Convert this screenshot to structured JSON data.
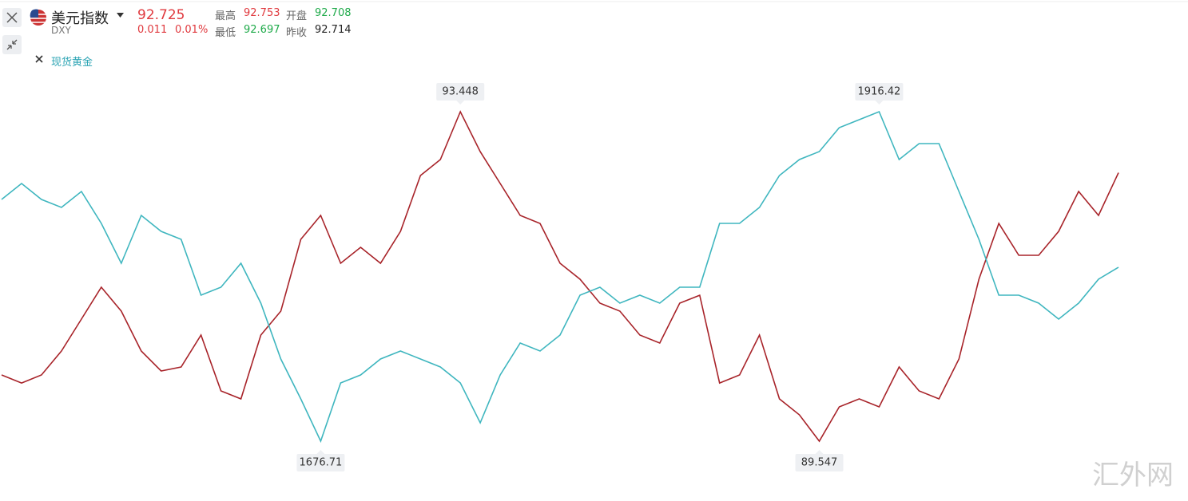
{
  "header": {
    "name": "美元指数",
    "code": "DXY",
    "price": 92.725,
    "change": 0.011,
    "change_pct": "0.01%",
    "stats": [
      {
        "label": "最高",
        "value": 92.753
      },
      {
        "label": "开盘",
        "value": 92.708
      },
      {
        "label": "最低",
        "value": 92.697
      },
      {
        "label": "昨收",
        "value": 92.714
      }
    ],
    "overlay": "现货黄金"
  },
  "watermark": "汇外网",
  "chart_data": {
    "type": "line",
    "series": [
      {
        "name": "DXY",
        "color": "#a8242a",
        "max_label": 93.448,
        "min_label": 89.547,
        "values": [
          90.331,
          90.236,
          90.331,
          90.614,
          90.992,
          91.37,
          91.087,
          90.614,
          90.378,
          90.425,
          90.803,
          90.142,
          90.048,
          90.803,
          91.087,
          91.937,
          92.22,
          91.653,
          91.842,
          91.653,
          92.031,
          92.692,
          92.881,
          93.448,
          92.975,
          92.598,
          92.22,
          92.125,
          91.653,
          91.464,
          91.181,
          91.087,
          90.803,
          90.709,
          91.181,
          91.275,
          90.236,
          90.331,
          90.803,
          90.048,
          89.859,
          89.547,
          89.953,
          90.048,
          89.953,
          90.425,
          90.142,
          90.048,
          90.52,
          91.464,
          92.125,
          91.748,
          91.748,
          92.031,
          92.503,
          92.22,
          92.725
        ]
      },
      {
        "name": "现货黄金",
        "color": "#3fb6bf",
        "max_label": 1916.42,
        "min_label": 1676.71,
        "values": [
          1852.57,
          1864.18,
          1852.57,
          1846.77,
          1858.38,
          1835.16,
          1806.14,
          1840.96,
          1829.36,
          1823.55,
          1782.92,
          1788.73,
          1806.14,
          1777.12,
          1736.49,
          1707.47,
          1676.71,
          1719.08,
          1724.88,
          1736.49,
          1742.3,
          1736.49,
          1730.69,
          1719.08,
          1690.06,
          1724.88,
          1748.1,
          1742.3,
          1753.9,
          1782.92,
          1788.73,
          1777.12,
          1782.92,
          1777.12,
          1788.73,
          1788.73,
          1835.16,
          1835.16,
          1846.77,
          1869.98,
          1881.59,
          1887.4,
          1904.81,
          1910.61,
          1916.42,
          1881.59,
          1893.2,
          1893.2,
          1858.38,
          1823.55,
          1782.92,
          1782.92,
          1777.12,
          1765.51,
          1777.12,
          1794.53,
          1803.24
        ]
      }
    ]
  }
}
